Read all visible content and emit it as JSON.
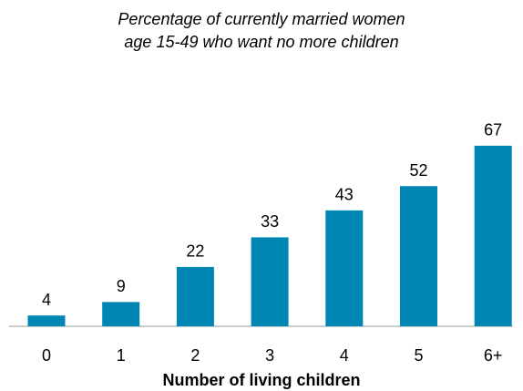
{
  "chart_data": {
    "type": "bar",
    "title": [
      "Percentage of currently married women",
      "age 15-49 who want no more children"
    ],
    "x_label": "Number of living children",
    "categories": [
      "0",
      "1",
      "2",
      "3",
      "4",
      "5",
      "6+"
    ],
    "values": [
      4,
      9,
      22,
      33,
      43,
      52,
      67
    ],
    "color": "#0086b3",
    "ylim": [
      0,
      70
    ]
  }
}
